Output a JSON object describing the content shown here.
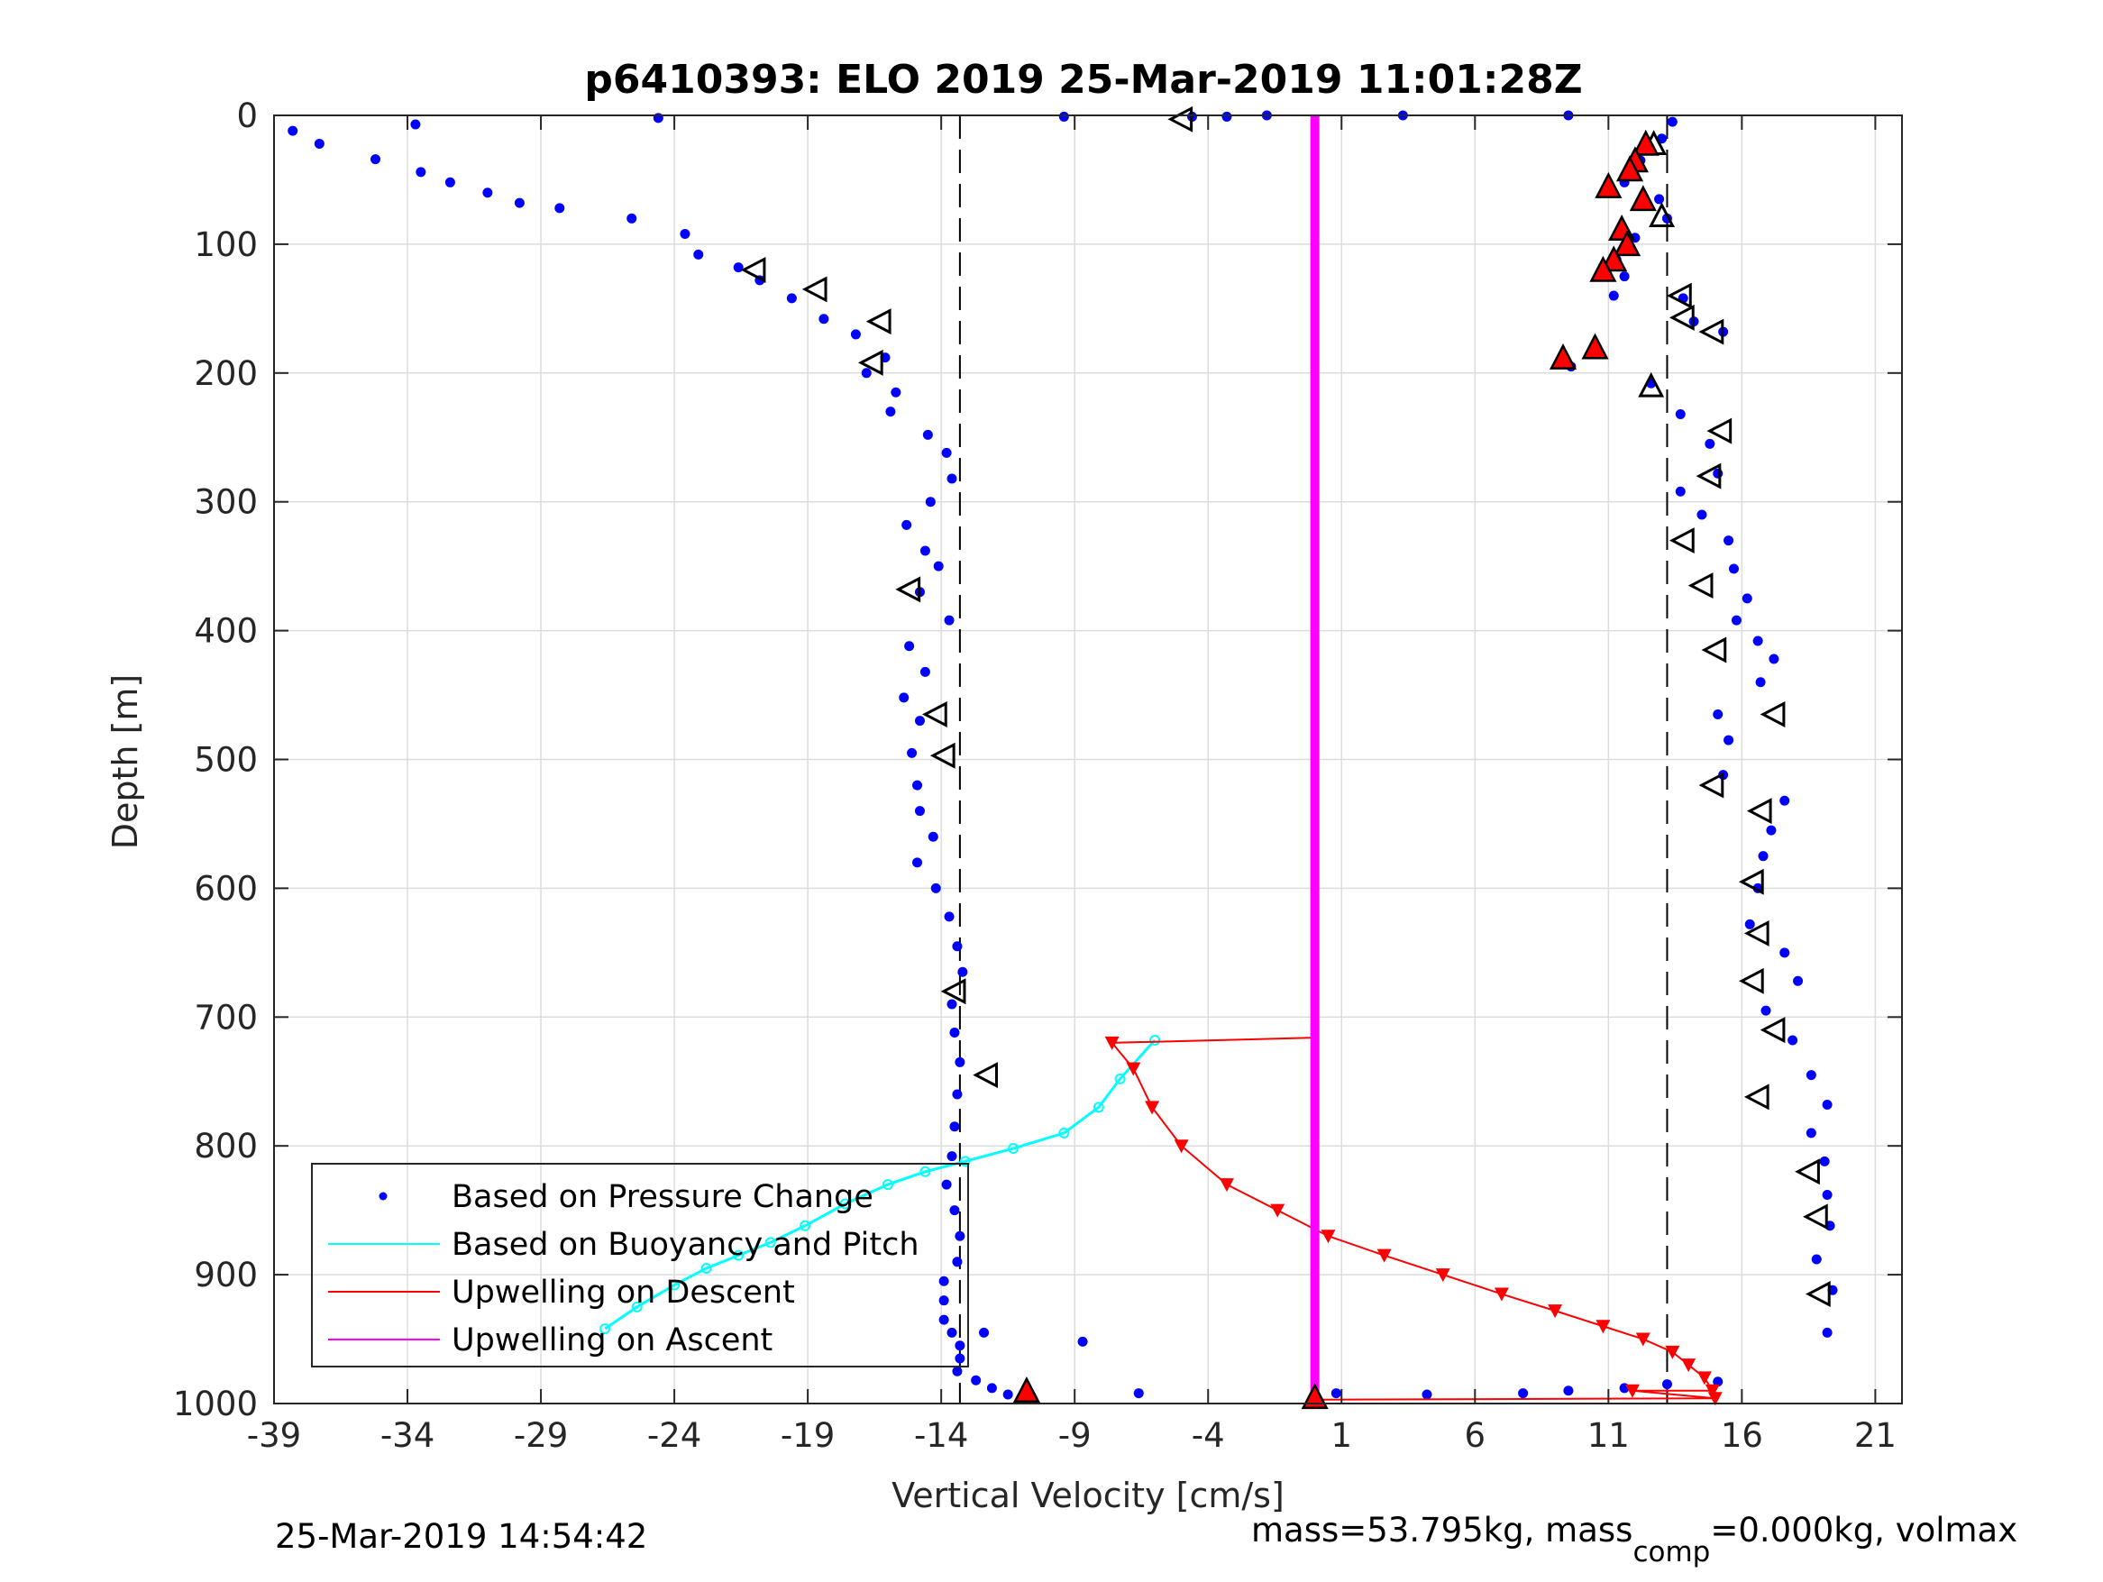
{
  "chart_data": {
    "type": "scatter",
    "title": "p6410393: ELO 2019 25-Mar-2019 11:01:28Z",
    "xlabel": "Vertical Velocity [cm/s]",
    "ylabel": "Depth [m]",
    "xlim": [
      -39,
      22
    ],
    "ylim": [
      0,
      1000
    ],
    "y_reversed": true,
    "grid": true,
    "xticks": [
      -39,
      -34,
      -29,
      -24,
      -19,
      -14,
      -9,
      -4,
      1,
      6,
      11,
      16,
      21
    ],
    "yticks": [
      0,
      100,
      200,
      300,
      400,
      500,
      600,
      700,
      800,
      900,
      1000
    ],
    "legend": {
      "placement": "bottom-left",
      "entries": [
        {
          "label": "Based on Pressure Change",
          "color": "#0000ff",
          "marker": "dot"
        },
        {
          "label": "Based on Buoyancy and Pitch",
          "color": "#00ffff",
          "marker": "line"
        },
        {
          "label": "Upwelling on Descent",
          "color": "#ff0000",
          "marker": "line"
        },
        {
          "label": "Upwelling on Ascent",
          "color": "#ff00ff",
          "marker": "line"
        }
      ]
    },
    "reference_lines": [
      {
        "x": -13.3,
        "style": "dashed",
        "color": "#000000"
      },
      {
        "x": 13.2,
        "style": "dashed",
        "color": "#000000"
      }
    ],
    "series": [
      {
        "name": "Based on Pressure Change",
        "role": "descent",
        "color": "#0000ff",
        "x": [
          -38.3,
          -37.3,
          -35.2,
          -33.5,
          -32.4,
          -31.0,
          -29.8,
          -28.3,
          -25.6,
          -23.6,
          -23.1,
          -21.6,
          -20.8,
          -19.6,
          -18.4,
          -17.2,
          -16.1,
          -16.8,
          -15.7,
          -15.9,
          -14.5,
          -13.8,
          -13.6,
          -14.4,
          -15.3,
          -14.6,
          -14.1,
          -14.8,
          -13.7,
          -15.2,
          -14.6,
          -15.4,
          -14.8,
          -15.1,
          -14.9,
          -14.8,
          -14.3,
          -14.9,
          -14.2,
          -13.7,
          -13.4,
          -13.2,
          -13.6,
          -13.5,
          -13.3,
          -13.4,
          -13.5,
          -13.6,
          -13.8,
          -13.5,
          -13.3,
          -13.4,
          -13.9,
          -13.9,
          -13.9,
          -13.6,
          -13.3,
          -13.3,
          -13.4,
          -12.7,
          -12.1,
          -11.5,
          -10.9
        ],
        "y": [
          12,
          22,
          34,
          44,
          52,
          60,
          68,
          72,
          80,
          92,
          108,
          118,
          128,
          142,
          158,
          170,
          188,
          200,
          215,
          230,
          248,
          262,
          282,
          300,
          318,
          338,
          350,
          370,
          392,
          412,
          432,
          452,
          470,
          495,
          520,
          540,
          560,
          580,
          600,
          622,
          645,
          665,
          690,
          712,
          735,
          760,
          785,
          808,
          830,
          850,
          870,
          890,
          905,
          920,
          935,
          945,
          955,
          965,
          975,
          982,
          988,
          993,
          996
        ]
      },
      {
        "name": "Based on Pressure Change",
        "role": "ascent",
        "color": "#0000ff",
        "x": [
          13.4,
          13.0,
          12.2,
          11.6,
          12.9,
          13.2,
          12.0,
          11.3,
          11.6,
          11.2,
          13.8,
          14.2,
          15.3,
          10.5,
          9.6,
          12.6,
          13.7,
          14.8,
          15.1,
          13.7,
          14.5,
          15.5,
          15.7,
          16.2,
          15.8,
          16.6,
          17.2,
          16.7,
          15.1,
          15.5,
          15.3,
          17.6,
          17.1,
          16.8,
          16.6,
          16.3,
          17.6,
          18.1,
          16.9,
          17.9,
          18.6,
          19.2,
          18.6,
          19.1,
          19.2,
          19.3,
          18.8,
          19.4,
          19.2
        ],
        "y": [
          5,
          18,
          35,
          52,
          65,
          80,
          95,
          112,
          125,
          140,
          142,
          160,
          168,
          182,
          195,
          208,
          232,
          255,
          278,
          292,
          310,
          330,
          352,
          375,
          392,
          408,
          422,
          440,
          465,
          485,
          512,
          532,
          555,
          575,
          600,
          628,
          650,
          672,
          695,
          718,
          745,
          768,
          790,
          812,
          838,
          862,
          888,
          912,
          945
        ]
      },
      {
        "name": "Based on Pressure Change",
        "role": "outliers",
        "color": "#0000ff",
        "x": [
          -33.7,
          -24.6,
          -9.4,
          -4.6,
          -3.3,
          -1.8,
          3.3,
          9.5,
          -12.4,
          -8.7,
          -6.6,
          0.8,
          4.2,
          7.8,
          9.5,
          11.6,
          13.2,
          15.1
        ],
        "y": [
          7,
          2,
          1,
          1,
          1,
          0,
          0,
          0,
          945,
          952,
          992,
          992,
          993,
          992,
          990,
          988,
          985,
          983
        ]
      },
      {
        "name": "Based on Buoyancy and Pitch",
        "color": "#00ffff",
        "x": [
          -6.0,
          -7.3,
          -8.1,
          -9.4,
          -11.3,
          -13.1,
          -14.6,
          -16.0,
          -17.6,
          -19.1,
          -20.4,
          -21.6,
          -22.8,
          -24.0,
          -25.4,
          -26.6
        ],
        "y": [
          718,
          748,
          770,
          790,
          802,
          812,
          820,
          830,
          845,
          862,
          875,
          885,
          895,
          908,
          925,
          942
        ]
      },
      {
        "name": "Upwelling on Descent",
        "color": "#ff0000",
        "x": [
          0.0,
          -7.6,
          -6.8,
          -6.1,
          -5.0,
          -3.3,
          -1.4,
          0.5,
          2.6,
          4.8,
          7.0,
          9.0,
          10.8,
          12.3,
          13.4,
          14.0,
          14.6,
          14.9,
          11.9,
          15.0,
          0.0
        ],
        "y": [
          716,
          720,
          740,
          770,
          800,
          830,
          850,
          870,
          885,
          900,
          915,
          928,
          940,
          950,
          960,
          970,
          980,
          990,
          990,
          996,
          997
        ]
      },
      {
        "name": "Upwelling on Ascent",
        "color": "#ff00ff",
        "x": [
          0.0,
          0.0
        ],
        "y": [
          0,
          1000
        ]
      }
    ],
    "markers": {
      "open_triangles_left": {
        "x": [
          -5.0,
          -21.0,
          -18.7,
          -16.3,
          -16.6,
          -15.2,
          -14.2,
          -13.9,
          -13.5,
          -12.3,
          13.7,
          13.8,
          14.9,
          15.2,
          14.8,
          13.8,
          14.5,
          15.0,
          17.2,
          14.9,
          16.7,
          16.4,
          16.6,
          16.4,
          17.2,
          16.6,
          18.5,
          18.8,
          18.9
        ],
        "y": [
          3,
          120,
          135,
          160,
          192,
          368,
          465,
          497,
          680,
          745,
          140,
          157,
          168,
          245,
          280,
          330,
          365,
          415,
          465,
          520,
          540,
          595,
          635,
          672,
          710,
          762,
          820,
          855,
          915
        ]
      },
      "open_triangles_up": {
        "x": [
          12.7,
          13.0,
          12.6
        ],
        "y": [
          22,
          78,
          210
        ]
      },
      "filled_red_triangles": {
        "x": [
          12.4,
          12.0,
          11.8,
          11.0,
          12.3,
          11.5,
          11.7,
          11.2,
          10.8,
          9.3,
          10.5,
          -10.8,
          0.0
        ],
        "y": [
          22,
          35,
          42,
          55,
          65,
          88,
          100,
          112,
          120,
          188,
          180,
          990,
          995
        ]
      }
    }
  },
  "footer": {
    "timestamp": "25-Mar-2019 14:54:42",
    "mass_prefix": "mass=53.795kg, mass",
    "mass_sub": "comp",
    "mass_suffix": "=0.000kg, volmax"
  }
}
